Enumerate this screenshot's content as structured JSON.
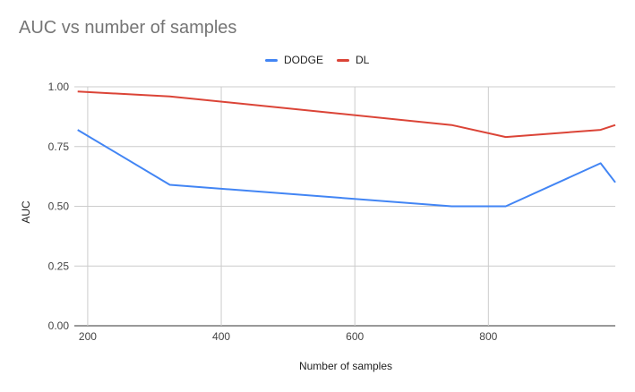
{
  "chart_data": {
    "type": "line",
    "title": "AUC vs number of samples",
    "xlabel": "Number of samples",
    "ylabel": "AUC",
    "xlim": [
      180,
      990
    ],
    "ylim": [
      0,
      1
    ],
    "x_ticks": [
      200,
      400,
      600,
      800
    ],
    "x_tick_labels": [
      "200",
      "400",
      "600",
      "800"
    ],
    "y_ticks": [
      0,
      0.25,
      0.5,
      0.75,
      1
    ],
    "y_tick_labels": [
      "0.00",
      "0.25",
      "0.50",
      "0.75",
      "1.00"
    ],
    "grid": true,
    "legend_position": "top",
    "series": [
      {
        "name": "DODGE",
        "color": "#4285f4",
        "x": [
          185,
          323,
          745,
          826,
          968,
          990
        ],
        "y": [
          0.82,
          0.59,
          0.5,
          0.5,
          0.68,
          0.6
        ]
      },
      {
        "name": "DL",
        "color": "#db4437",
        "x": [
          185,
          323,
          745,
          826,
          968,
          990
        ],
        "y": [
          0.98,
          0.96,
          0.84,
          0.79,
          0.82,
          0.84
        ]
      }
    ]
  }
}
